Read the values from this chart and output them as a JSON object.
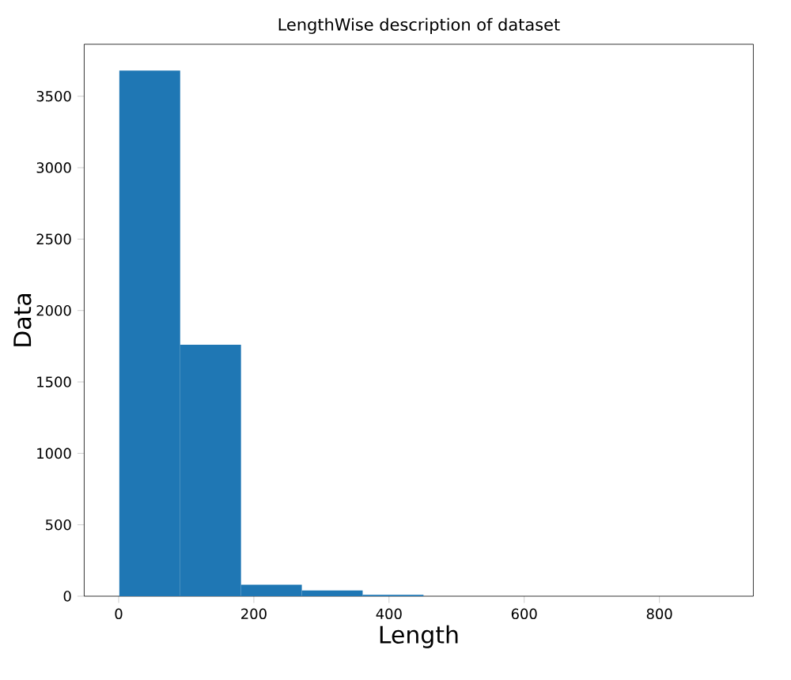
{
  "chart_data": {
    "type": "histogram",
    "title": "LengthWise description of dataset",
    "xlabel": "Length",
    "ylabel": "Data",
    "bins": [
      1,
      91,
      181,
      271,
      361,
      451,
      541,
      631,
      721,
      811,
      901
    ],
    "values": [
      3680,
      1760,
      80,
      40,
      10,
      0,
      0,
      0,
      0,
      0
    ],
    "color": "#1f77b4",
    "xlim": [
      -51,
      939
    ],
    "ylim": [
      0,
      3864
    ],
    "xticks": [
      0,
      200,
      400,
      600,
      800
    ],
    "yticks": [
      0,
      500,
      1000,
      1500,
      2000,
      2500,
      3000,
      3500
    ]
  }
}
